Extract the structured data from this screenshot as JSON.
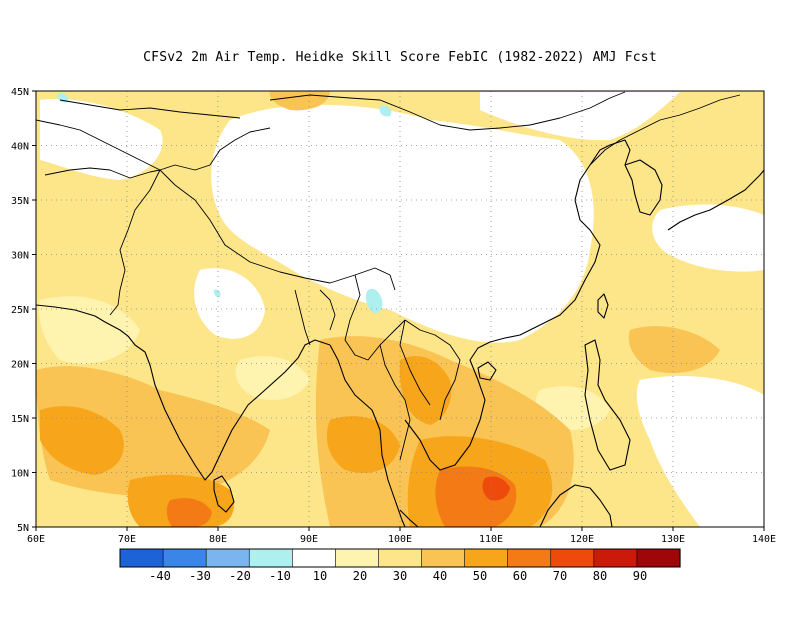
{
  "title": "CFSv2  2m Air Temp. Heidke Skill Score FebIC (1982-2022) AMJ Fcst",
  "lat_labels": [
    "45N",
    "40N",
    "35N",
    "30N",
    "25N",
    "20N",
    "15N",
    "10N",
    "5N"
  ],
  "lon_labels": [
    "60E",
    "70E",
    "80E",
    "90E",
    "100E",
    "110E",
    "120E",
    "130E",
    "140E"
  ],
  "colorbar": {
    "labels": [
      "-40",
      "-30",
      "-20",
      "-10",
      "10",
      "20",
      "30",
      "40",
      "50",
      "60",
      "70",
      "80",
      "90"
    ],
    "colors": [
      "#1e62d8",
      "#3a86e8",
      "#7ab5f0",
      "#aef0f0",
      "#ffffff",
      "#fff3b0",
      "#fde68a",
      "#f9c454",
      "#f7a61c",
      "#f37a14",
      "#ee4a0c",
      "#cc1a0a",
      "#9e0608"
    ]
  },
  "map": {
    "extent": {
      "lon_min": 60,
      "lon_max": 140,
      "lat_min": 5,
      "lat_max": 45
    },
    "grid": "dotted",
    "colors": {
      "land_blank": "#ffffff",
      "light": "#fff3b0",
      "yellow": "#fde68a",
      "orange_light": "#f9c454",
      "orange": "#f7a61c",
      "orange_deep": "#f37a14",
      "red": "#ee4a0c",
      "cyan": "#aef0f0"
    }
  }
}
